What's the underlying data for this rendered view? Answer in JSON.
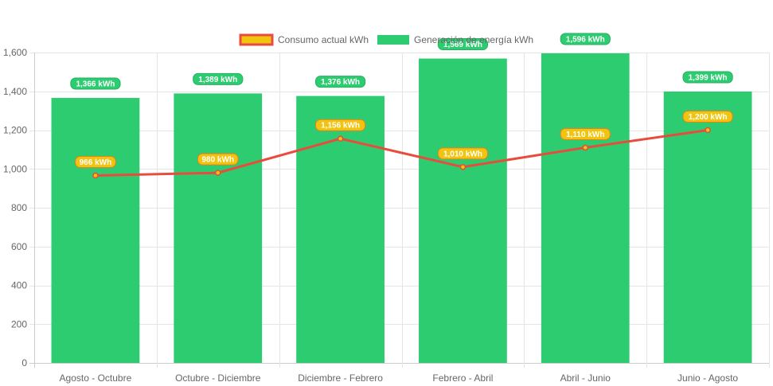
{
  "chart_data": {
    "type": "bar",
    "categories": [
      "Agosto - Octubre",
      "Octubre - Diciembre",
      "Diciembre - Febrero",
      "Febrero - Abril",
      "Abril - Junio",
      "Junio - Agosto"
    ],
    "series": [
      {
        "name": "Consumo actual kWh",
        "type": "line",
        "values": [
          966,
          980,
          1156,
          1010,
          1110,
          1200
        ],
        "labels": [
          "966 kWh",
          "980 kWh",
          "1,156 kWh",
          "1,010 kWh",
          "1,110 kWh",
          "1,200 kWh"
        ],
        "color": "#e74c3c",
        "label_color": "#f1c40f"
      },
      {
        "name": "Generación de energía kWh",
        "type": "bar",
        "values": [
          1366,
          1389,
          1376,
          1569,
          1596,
          1399
        ],
        "labels": [
          "1,366 kWh",
          "1,389 kWh",
          "1,376 kWh",
          "1,569 kWh",
          "1,596 kWh",
          "1,399 kWh"
        ],
        "color": "#2ecc71"
      }
    ],
    "y_ticks": [
      "0",
      "200",
      "400",
      "600",
      "800",
      "1,000",
      "1,200",
      "1,400",
      "1,600"
    ],
    "ylim": [
      0,
      1600
    ],
    "grid": true,
    "legend_position": "top"
  }
}
